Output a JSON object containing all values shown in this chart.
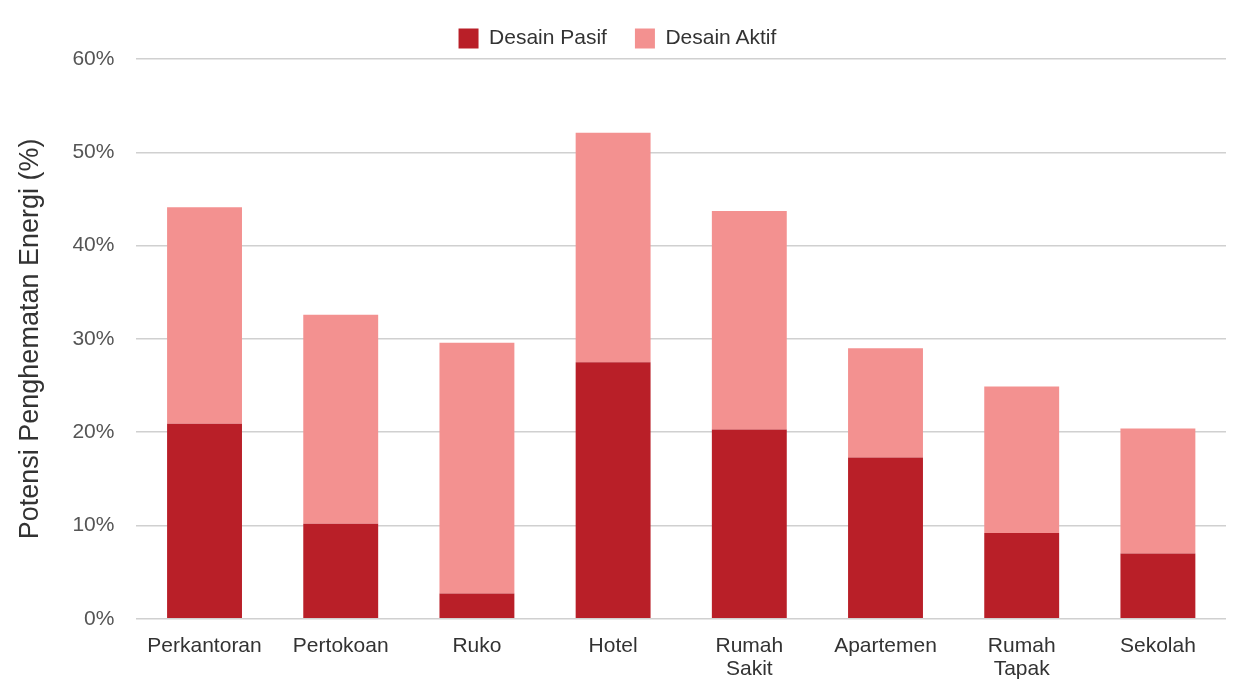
{
  "chart_data": {
    "type": "bar",
    "stacked": true,
    "ylabel": "Potensi Penghematan Energi (%)",
    "categories": [
      "Perkantoran",
      "Pertokoan",
      "Ruko",
      "Hotel",
      "Rumah Sakit",
      "Apartemen",
      "Rumah Tapak",
      "Sekolah"
    ],
    "series": [
      {
        "name": "Desain Pasif",
        "color": "#b91f28",
        "values": [
          20.9,
          10.2,
          2.7,
          27.5,
          20.3,
          17.3,
          9.2,
          7.0
        ]
      },
      {
        "name": "Desain Aktif",
        "color": "#f39190",
        "values": [
          23.2,
          22.4,
          26.9,
          24.6,
          23.4,
          11.7,
          15.7,
          13.4
        ]
      }
    ],
    "ylim": [
      0,
      60
    ],
    "yticks": [
      {
        "value": 0,
        "label": "0%"
      },
      {
        "value": 10,
        "label": "10%"
      },
      {
        "value": 20,
        "label": "20%"
      },
      {
        "value": 30,
        "label": "30%"
      },
      {
        "value": 40,
        "label": "40%"
      },
      {
        "value": 50,
        "label": "50%"
      },
      {
        "value": 60,
        "label": "60%"
      }
    ],
    "grid": "y",
    "legend": "top"
  }
}
